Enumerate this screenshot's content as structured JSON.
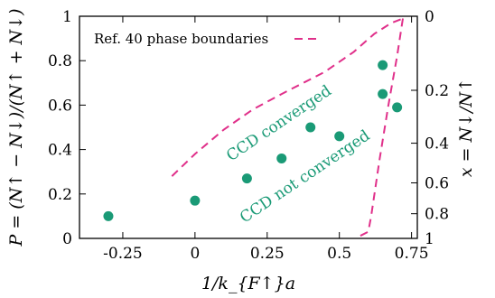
{
  "chart_data": {
    "type": "scatter",
    "xlabel": "1/k_{F↑}a",
    "ylabel": "P = (N↑ − N↓)/(N↑ + N↓)",
    "y2label": "x = N↓/N↑",
    "xlim": [
      -0.4,
      0.77
    ],
    "ylim": [
      0,
      1
    ],
    "x_ticks": [
      -0.25,
      0,
      0.25,
      0.5,
      0.75
    ],
    "x_tick_labels": [
      "-0.25",
      "0",
      "0.25",
      "0.5",
      "0.75"
    ],
    "y_ticks": [
      0,
      0.2,
      0.4,
      0.6,
      0.8,
      1
    ],
    "y_tick_labels": [
      "0",
      "0.2",
      "0.4",
      "0.6",
      "0.8",
      "1"
    ],
    "y2_ticks": [
      0,
      0.2,
      0.4,
      0.6,
      0.8,
      1
    ],
    "y2_tick_labels": [
      "0",
      "0.2",
      "0.4",
      "0.6",
      "0.8",
      "1"
    ],
    "grid": false,
    "legend_position": "top-left",
    "colors": {
      "points": "#1a9a76",
      "boundary": "#e0308a",
      "annotation": "#1a9a76"
    },
    "series": [
      {
        "name": "Ref. 40 phase boundaries",
        "type": "line",
        "style": "dashed",
        "segments": [
          {
            "x": [
              -0.08,
              0.0,
              0.1,
              0.2,
              0.3,
              0.45,
              0.55,
              0.62,
              0.68,
              0.72
            ],
            "y": [
              0.28,
              0.38,
              0.49,
              0.58,
              0.65,
              0.75,
              0.84,
              0.92,
              0.97,
              0.99
            ]
          },
          {
            "x": [
              0.72,
              0.7,
              0.67,
              0.64,
              0.61,
              0.6,
              0.57
            ],
            "y": [
              0.99,
              0.82,
              0.6,
              0.36,
              0.1,
              0.03,
              0.01
            ]
          }
        ]
      },
      {
        "type": "scatter",
        "x": [
          -0.3,
          0.0,
          0.18,
          0.3,
          0.4,
          0.5,
          0.65,
          0.65,
          0.7
        ],
        "y": [
          0.1,
          0.17,
          0.27,
          0.36,
          0.5,
          0.46,
          0.78,
          0.65,
          0.59
        ]
      }
    ],
    "annotations": [
      {
        "text": "CCD converged",
        "x": 0.3,
        "y": 0.5
      },
      {
        "text": "CCD not converged",
        "x": 0.39,
        "y": 0.26
      }
    ]
  }
}
